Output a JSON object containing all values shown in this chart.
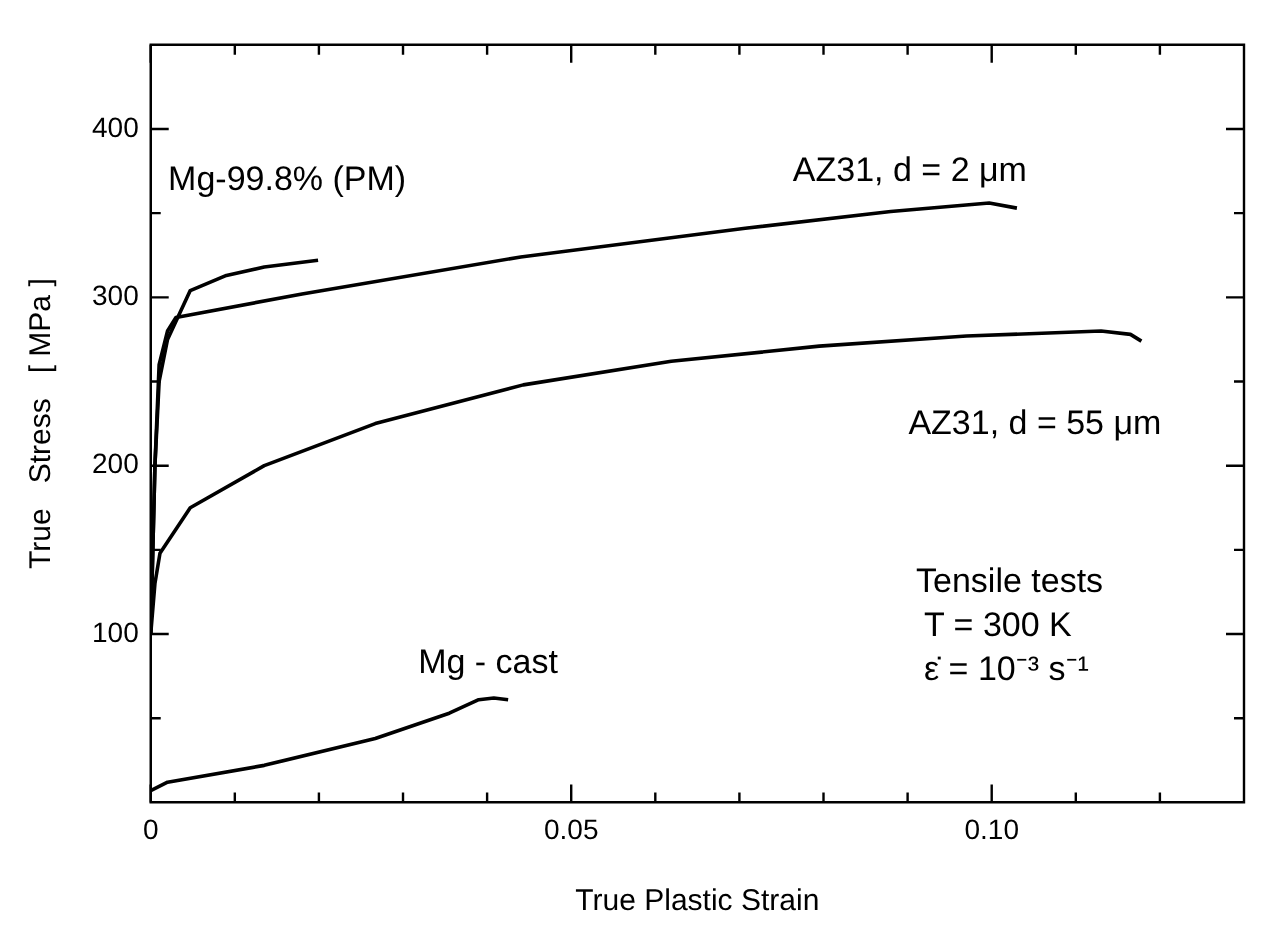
{
  "chart_data": {
    "type": "line",
    "xlabel": "True Plastic Strain",
    "ylabel": "True   Stress   [ MPa ]",
    "xlim": [
      0,
      0.13
    ],
    "ylim": [
      0,
      450
    ],
    "xticks": [
      0,
      {
        "value": 0.01,
        "label": null
      },
      {
        "value": 0.02,
        "label": null
      },
      {
        "value": 0.03,
        "label": null
      },
      {
        "value": 0.04,
        "label": null
      },
      0.05,
      {
        "value": 0.06,
        "label": null
      },
      {
        "value": 0.07,
        "label": null
      },
      {
        "value": 0.08,
        "label": null
      },
      {
        "value": 0.09,
        "label": null
      },
      {
        "value": 0.1,
        "label": "0.10"
      },
      {
        "value": 0.11,
        "label": null
      },
      {
        "value": 0.12,
        "label": null
      }
    ],
    "yticks": [
      {
        "value": 50,
        "label": null
      },
      100,
      {
        "value": 150,
        "label": null
      },
      200,
      {
        "value": 250,
        "label": null
      },
      300,
      {
        "value": 350,
        "label": null
      },
      400
    ],
    "grid": false,
    "legend": false,
    "marker": "none",
    "line_style": "solid",
    "series": [
      {
        "name": "AZ31, d = 2 μm",
        "color": "#000000",
        "x": [
          0,
          0.0005,
          0.001,
          0.002,
          0.003,
          0.018,
          0.044,
          0.0707,
          0.088,
          0.0997,
          0.103
        ],
        "values": [
          100,
          200,
          260,
          280,
          288,
          302,
          324,
          341,
          351,
          356,
          353
        ]
      },
      {
        "name": "Mg-99.8% (PM)",
        "color": "#000000",
        "x": [
          0,
          0.0005,
          0.001,
          0.002,
          0.0047,
          0.009,
          0.0135,
          0.0199
        ],
        "values": [
          100,
          200,
          250,
          275,
          304,
          313,
          318,
          322
        ]
      },
      {
        "name": "AZ31, d = 55 μm",
        "color": "#000000",
        "x": [
          0,
          0.0005,
          0.0011,
          0.0047,
          0.0135,
          0.0267,
          0.0443,
          0.0619,
          0.0795,
          0.097,
          0.113,
          0.1165,
          0.1178
        ],
        "values": [
          100,
          130,
          148,
          175,
          200,
          225,
          248,
          262,
          271,
          277,
          280,
          278,
          274
        ]
      },
      {
        "name": "Mg - cast",
        "color": "#000000",
        "x": [
          0,
          0.002,
          0.0135,
          0.0267,
          0.0355,
          0.039,
          0.0408,
          0.0425
        ],
        "values": [
          7,
          12,
          22,
          38,
          53,
          61,
          62,
          61
        ]
      }
    ],
    "annotations": [
      "Tensile tests",
      "T = 300 K",
      "ε̇ = 10⁻³ s⁻¹"
    ]
  }
}
